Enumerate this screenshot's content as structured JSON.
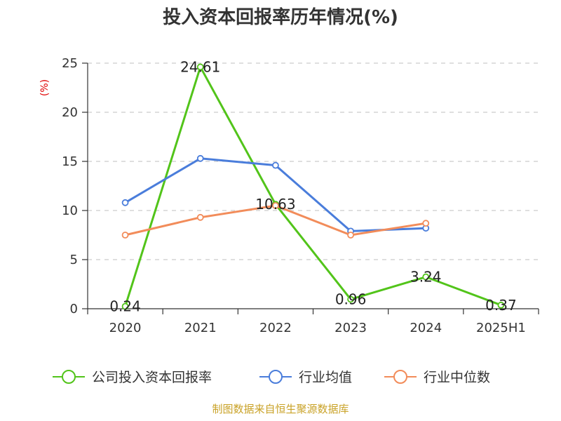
{
  "chart_data": {
    "type": "line",
    "title": "投入资本回报率历年情况(%)",
    "ylabel": "(%)",
    "xlabel": "",
    "categories": [
      "2020",
      "2021",
      "2022",
      "2023",
      "2024",
      "2025H1"
    ],
    "ylim": [
      0,
      25
    ],
    "yticks": [
      "0",
      "5",
      "10",
      "15",
      "20",
      "25"
    ],
    "grid": true,
    "legend_position": "bottom",
    "series": [
      {
        "name": "公司投入资本回报率",
        "color": "#52c41a",
        "values": [
          0.24,
          24.61,
          10.63,
          0.96,
          3.24,
          0.37
        ],
        "labels": [
          "0.24",
          "24.61",
          "10.63",
          "0.96",
          "3.24",
          "0.37"
        ]
      },
      {
        "name": "行业均值",
        "color": "#4a7ddb",
        "values": [
          10.8,
          15.3,
          14.6,
          7.9,
          8.2,
          null
        ]
      },
      {
        "name": "行业中位数",
        "color": "#f28c5a",
        "values": [
          7.5,
          9.3,
          10.5,
          7.5,
          8.7,
          null
        ]
      }
    ]
  },
  "source_note": "制图数据来自恒生聚源数据库"
}
